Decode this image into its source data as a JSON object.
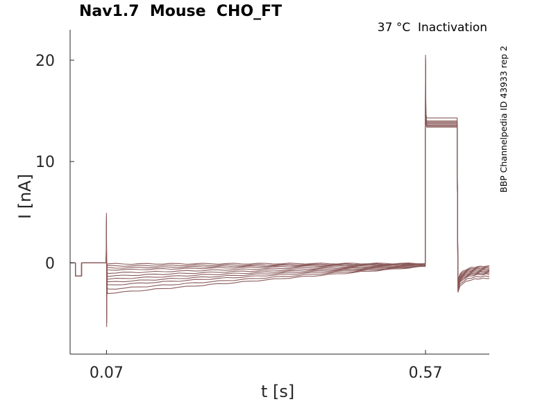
{
  "chart_data": {
    "type": "line",
    "title": "Nav1.7  Mouse  CHO_FT",
    "subtitle": "37 °C  Inactivation",
    "side_label": "BBP Channelpedia ID 43933 rep 2",
    "xlabel": "t [s]",
    "ylabel": "I [nA]",
    "xlim": [
      0.013,
      0.67
    ],
    "ylim": [
      -9,
      23
    ],
    "x_ticks": [
      0.07,
      0.57
    ],
    "x_tick_labels": [
      "0.07",
      "0.57"
    ],
    "y_ticks": [
      0,
      10,
      20
    ],
    "y_tick_labels": [
      "0",
      "10",
      "20"
    ],
    "grid": false,
    "line_color": "#8a5a5a",
    "sweeps": [
      {
        "plateau_start": -0.1,
        "plateau_end": -0.05,
        "test_peak": 20.5,
        "test_level": 14.3,
        "tail_level": -0.3
      },
      {
        "plateau_start": -0.3,
        "plateau_end": -0.08,
        "test_peak": 20.3,
        "test_level": 14.0,
        "tail_level": -0.4
      },
      {
        "plateau_start": -0.5,
        "plateau_end": -0.1,
        "test_peak": 20.1,
        "test_level": 13.9,
        "tail_level": -0.5
      },
      {
        "plateau_start": -0.7,
        "plateau_end": -0.13,
        "test_peak": 19.9,
        "test_level": 13.8,
        "tail_level": -0.6
      },
      {
        "plateau_start": -1.0,
        "plateau_end": -0.16,
        "test_peak": 19.7,
        "test_level": 13.7,
        "tail_level": -0.7
      },
      {
        "plateau_start": -1.3,
        "plateau_end": -0.2,
        "test_peak": 19.5,
        "test_level": 13.6,
        "tail_level": -0.8
      },
      {
        "plateau_start": -1.6,
        "plateau_end": -0.23,
        "test_peak": 19.3,
        "test_level": 13.6,
        "tail_level": -0.9
      },
      {
        "plateau_start": -1.9,
        "plateau_end": -0.26,
        "test_peak": 19.1,
        "test_level": 13.5,
        "tail_level": -1.0
      },
      {
        "plateau_start": -2.2,
        "plateau_end": -0.3,
        "test_peak": 18.9,
        "test_level": 13.5,
        "tail_level": -1.1
      },
      {
        "plateau_start": -2.6,
        "plateau_end": -0.33,
        "test_peak": 18.7,
        "test_level": 13.4,
        "tail_level": -1.3
      },
      {
        "plateau_start": -3.0,
        "plateau_end": -0.36,
        "test_peak": 18.5,
        "test_level": 13.4,
        "tail_level": -1.5
      }
    ]
  }
}
